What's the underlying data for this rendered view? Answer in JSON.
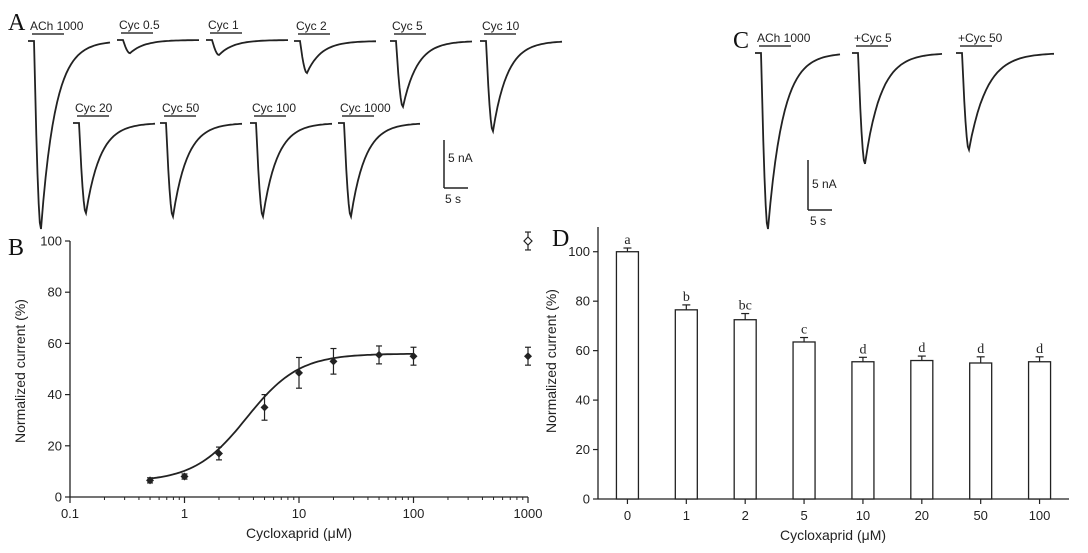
{
  "panels": {
    "a": "A",
    "b": "B",
    "c": "C",
    "d": "D"
  },
  "chart_data": [
    {
      "type": "line",
      "panel": "A",
      "traces": [
        {
          "label": "ACh 1000",
          "peak": 1.0
        },
        {
          "label": "Cyc 0.5",
          "peak": 0.07
        },
        {
          "label": "Cyc 1",
          "peak": 0.08
        },
        {
          "label": "Cyc 2",
          "peak": 0.17
        },
        {
          "label": "Cyc 5",
          "peak": 0.35
        },
        {
          "label": "Cyc 10",
          "peak": 0.48
        },
        {
          "label": "Cyc 20",
          "peak": 0.53
        },
        {
          "label": "Cyc 50",
          "peak": 0.55
        },
        {
          "label": "Cyc 100",
          "peak": 0.55
        },
        {
          "label": "Cyc 1000",
          "peak": 0.55
        }
      ],
      "scalebar": {
        "current": "5 nA",
        "time": "5 s"
      }
    },
    {
      "type": "scatter",
      "panel": "B",
      "xlabel": "Cycloxaprid (μM)",
      "ylabel": "Normalized current (%)",
      "xscale": "log",
      "xlim": [
        0.1,
        1000
      ],
      "ylim": [
        0,
        100
      ],
      "xticks": [
        "0.1",
        "1",
        "10",
        "100",
        "1000"
      ],
      "yticks": [
        0,
        20,
        40,
        60,
        80,
        100
      ],
      "points": [
        {
          "x": 0.5,
          "y": 6.5,
          "err": 1
        },
        {
          "x": 1,
          "y": 8,
          "err": 1
        },
        {
          "x": 2,
          "y": 17,
          "err": 2.5
        },
        {
          "x": 5,
          "y": 35,
          "err": 5
        },
        {
          "x": 10,
          "y": 48.5,
          "err": 6
        },
        {
          "x": 20,
          "y": 53,
          "err": 5
        },
        {
          "x": 50,
          "y": 55.5,
          "err": 3.5
        },
        {
          "x": 100,
          "y": 55,
          "err": 3.5
        },
        {
          "x": 1000,
          "y": 55,
          "err": 3.5
        }
      ],
      "open_points": [
        {
          "x": 1000,
          "y": 100,
          "err": 3.5
        }
      ],
      "fit": {
        "bottom": 6,
        "top": 56,
        "ec50": 3.5,
        "hill": 1.9
      }
    },
    {
      "type": "line",
      "panel": "C",
      "traces": [
        {
          "label": "ACh 1000",
          "peak": 1.0
        },
        {
          "label": "+Cyc 5",
          "peak": 0.63
        },
        {
          "label": "+Cyc 50",
          "peak": 0.55
        }
      ],
      "scalebar": {
        "current": "5 nA",
        "time": "5 s"
      }
    },
    {
      "type": "bar",
      "panel": "D",
      "xlabel": "Cycloxaprid (μM)",
      "ylabel": "Normalized current (%)",
      "ylim": [
        0,
        110
      ],
      "yticks": [
        0,
        20,
        40,
        60,
        80,
        100
      ],
      "categories": [
        "0",
        "1",
        "2",
        "5",
        "10",
        "20",
        "50",
        "100"
      ],
      "values": [
        100,
        76.5,
        72.5,
        63.5,
        55.5,
        56,
        55,
        55.5
      ],
      "errors": [
        1.5,
        2,
        2.5,
        1.8,
        1.8,
        1.8,
        2.5,
        2
      ],
      "letters": [
        "a",
        "b",
        "bc",
        "c",
        "d",
        "d",
        "d",
        "d"
      ]
    }
  ]
}
